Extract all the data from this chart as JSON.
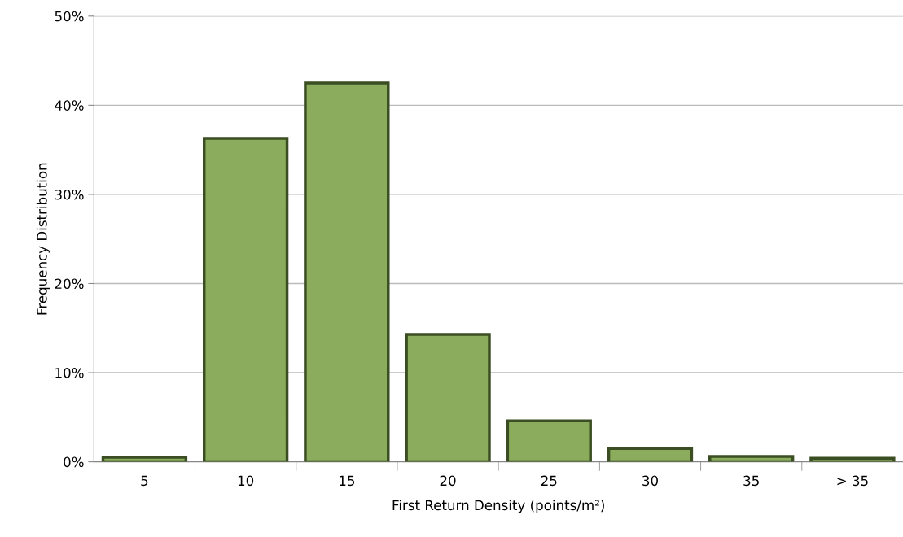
{
  "chart_data": {
    "type": "bar",
    "xlabel": "First Return Density (points/m²)",
    "ylabel": "Frequency Distribution",
    "categories": [
      "5",
      "10",
      "15",
      "20",
      "25",
      "30",
      "35",
      "> 35"
    ],
    "values": [
      0.5,
      36.3,
      42.5,
      14.3,
      4.6,
      1.5,
      0.6,
      0.4
    ],
    "color": "#8aac5c",
    "ylim": [
      0,
      50
    ],
    "yticks": [
      {
        "value": 0,
        "label": "0%"
      },
      {
        "value": 10,
        "label": "10%"
      },
      {
        "value": 20,
        "label": "20%"
      },
      {
        "value": 30,
        "label": "30%"
      },
      {
        "value": 40,
        "label": "40%"
      },
      {
        "value": 50,
        "label": "50%"
      }
    ],
    "grid": "y"
  }
}
